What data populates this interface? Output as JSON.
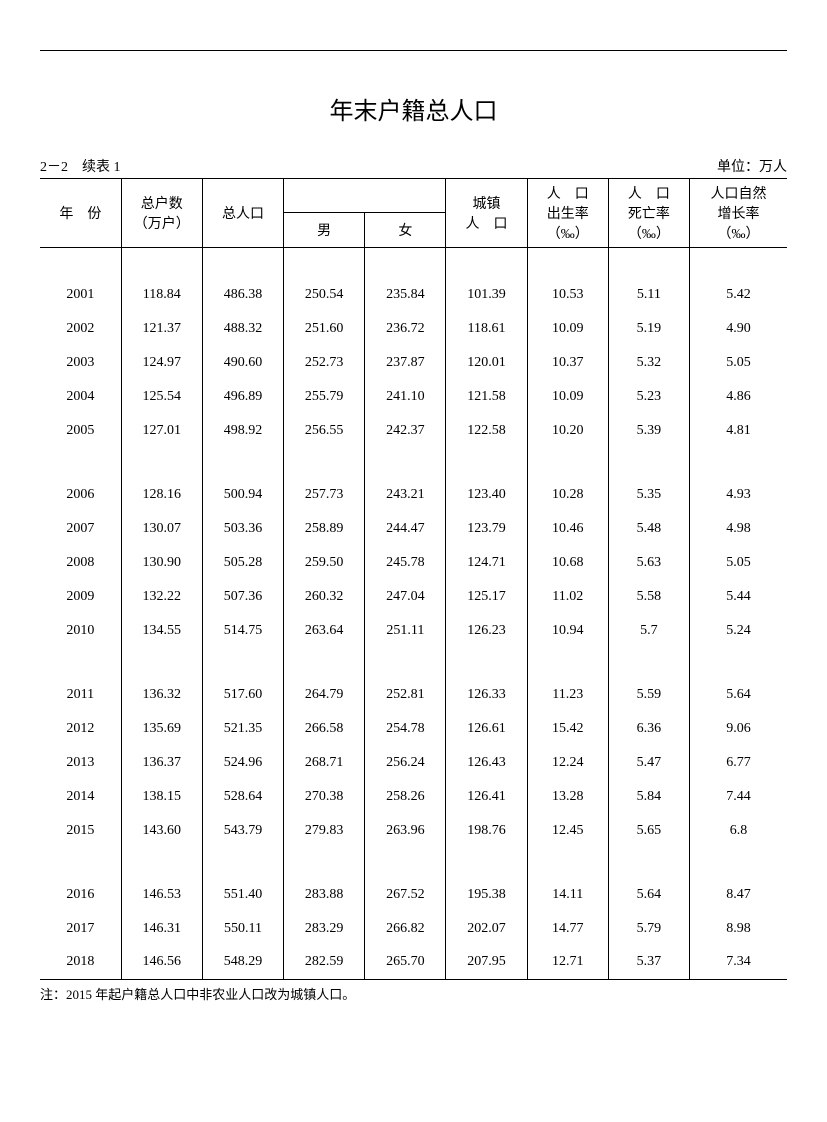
{
  "title": "年末户籍总人口",
  "table_ref": "2－2　续表 1",
  "unit": "单位：万人",
  "footnote": "注：2015 年起户籍总人口中非农业人口改为城镇人口。",
  "table": {
    "type": "table",
    "background_color": "#ffffff",
    "border_color": "#000000",
    "font_size_pt": 10,
    "header": {
      "year": "年　份",
      "households": "总户数\n（万户）",
      "total_pop": "总人口",
      "male": "男",
      "female": "女",
      "urban": "城镇\n人　口",
      "birth_rate": "人　口\n出生率\n（‰）",
      "death_rate": "人　口\n死亡率\n（‰）",
      "growth_rate": "人口自然\n增长率\n（‰）"
    },
    "column_widths_pct": [
      10,
      10,
      10,
      10,
      10,
      10,
      10,
      10,
      12
    ],
    "groups": [
      [
        {
          "year": "2001",
          "households": "118.84",
          "total": "486.38",
          "male": "250.54",
          "female": "235.84",
          "urban": "101.39",
          "birth": "10.53",
          "death": "5.11",
          "growth": "5.42"
        },
        {
          "year": "2002",
          "households": "121.37",
          "total": "488.32",
          "male": "251.60",
          "female": "236.72",
          "urban": "118.61",
          "birth": "10.09",
          "death": "5.19",
          "growth": "4.90"
        },
        {
          "year": "2003",
          "households": "124.97",
          "total": "490.60",
          "male": "252.73",
          "female": "237.87",
          "urban": "120.01",
          "birth": "10.37",
          "death": "5.32",
          "growth": "5.05"
        },
        {
          "year": "2004",
          "households": "125.54",
          "total": "496.89",
          "male": "255.79",
          "female": "241.10",
          "urban": "121.58",
          "birth": "10.09",
          "death": "5.23",
          "growth": "4.86"
        },
        {
          "year": "2005",
          "households": "127.01",
          "total": "498.92",
          "male": "256.55",
          "female": "242.37",
          "urban": "122.58",
          "birth": "10.20",
          "death": "5.39",
          "growth": "4.81"
        }
      ],
      [
        {
          "year": "2006",
          "households": "128.16",
          "total": "500.94",
          "male": "257.73",
          "female": "243.21",
          "urban": "123.40",
          "birth": "10.28",
          "death": "5.35",
          "growth": "4.93"
        },
        {
          "year": "2007",
          "households": "130.07",
          "total": "503.36",
          "male": "258.89",
          "female": "244.47",
          "urban": "123.79",
          "birth": "10.46",
          "death": "5.48",
          "growth": "4.98"
        },
        {
          "year": "2008",
          "households": "130.90",
          "total": "505.28",
          "male": "259.50",
          "female": "245.78",
          "urban": "124.71",
          "birth": "10.68",
          "death": "5.63",
          "growth": "5.05"
        },
        {
          "year": "2009",
          "households": "132.22",
          "total": "507.36",
          "male": "260.32",
          "female": "247.04",
          "urban": "125.17",
          "birth": "11.02",
          "death": "5.58",
          "growth": "5.44"
        },
        {
          "year": "2010",
          "households": "134.55",
          "total": "514.75",
          "male": "263.64",
          "female": "251.11",
          "urban": "126.23",
          "birth": "10.94",
          "death": "5.7",
          "growth": "5.24"
        }
      ],
      [
        {
          "year": "2011",
          "households": "136.32",
          "total": "517.60",
          "male": "264.79",
          "female": "252.81",
          "urban": "126.33",
          "birth": "11.23",
          "death": "5.59",
          "growth": "5.64"
        },
        {
          "year": "2012",
          "households": "135.69",
          "total": "521.35",
          "male": "266.58",
          "female": "254.78",
          "urban": "126.61",
          "birth": "15.42",
          "death": "6.36",
          "growth": "9.06"
        },
        {
          "year": "2013",
          "households": "136.37",
          "total": "524.96",
          "male": "268.71",
          "female": "256.24",
          "urban": "126.43",
          "birth": "12.24",
          "death": "5.47",
          "growth": "6.77"
        },
        {
          "year": "2014",
          "households": "138.15",
          "total": "528.64",
          "male": "270.38",
          "female": "258.26",
          "urban": "126.41",
          "birth": "13.28",
          "death": "5.84",
          "growth": "7.44"
        },
        {
          "year": "2015",
          "households": "143.60",
          "total": "543.79",
          "male": "279.83",
          "female": "263.96",
          "urban": "198.76",
          "birth": "12.45",
          "death": "5.65",
          "growth": "6.8"
        }
      ],
      [
        {
          "year": "2016",
          "households": "146.53",
          "total": "551.40",
          "male": "283.88",
          "female": "267.52",
          "urban": "195.38",
          "birth": "14.11",
          "death": "5.64",
          "growth": "8.47"
        },
        {
          "year": "2017",
          "households": "146.31",
          "total": "550.11",
          "male": "283.29",
          "female": "266.82",
          "urban": "202.07",
          "birth": "14.77",
          "death": "5.79",
          "growth": "8.98"
        },
        {
          "year": "2018",
          "households": "146.56",
          "total": "548.29",
          "male": "282.59",
          "female": "265.70",
          "urban": "207.95",
          "birth": "12.71",
          "death": "5.37",
          "growth": "7.34"
        }
      ]
    ]
  }
}
